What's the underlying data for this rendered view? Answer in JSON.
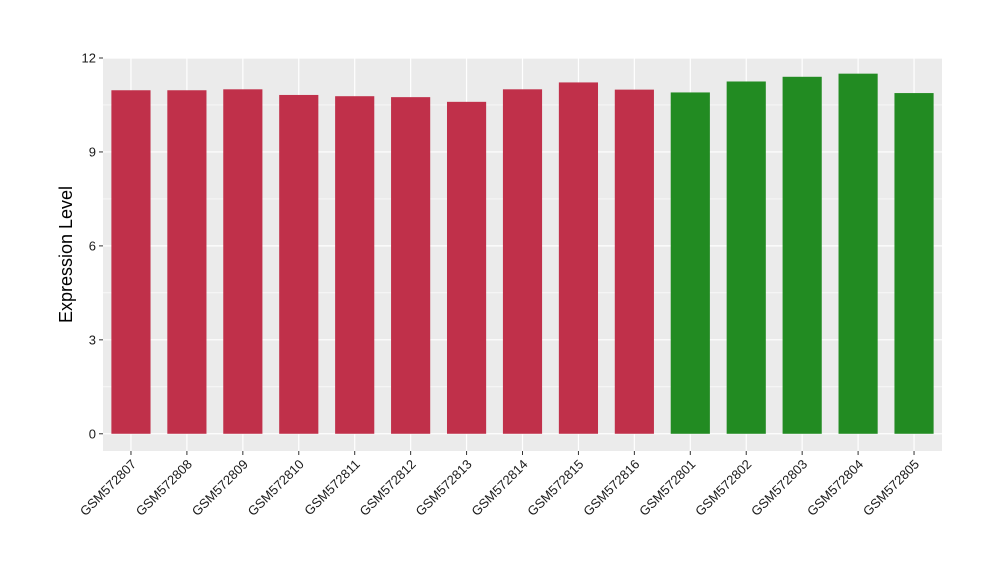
{
  "chart_data": {
    "type": "bar",
    "ylabel": "Expression Level",
    "xlabel": "",
    "title": "",
    "categories": [
      "GSM572807",
      "GSM572808",
      "GSM572809",
      "GSM572810",
      "GSM572811",
      "GSM572812",
      "GSM572813",
      "GSM572814",
      "GSM572815",
      "GSM572816",
      "GSM572801",
      "GSM572802",
      "GSM572803",
      "GSM572804",
      "GSM572805"
    ],
    "values": [
      10.97,
      10.97,
      11.0,
      10.82,
      10.78,
      10.75,
      10.6,
      11.0,
      11.22,
      10.99,
      10.9,
      11.25,
      11.4,
      11.5,
      10.88
    ],
    "bar_colors": [
      "#c0304a",
      "#c0304a",
      "#c0304a",
      "#c0304a",
      "#c0304a",
      "#c0304a",
      "#c0304a",
      "#c0304a",
      "#c0304a",
      "#c0304a",
      "#228b22",
      "#228b22",
      "#228b22",
      "#228b22",
      "#228b22"
    ],
    "ylim": [
      -0.55,
      12
    ],
    "yticks": [
      0,
      3,
      6,
      9,
      12
    ],
    "grid": true,
    "panel_background": "#ebebeb",
    "grid_color": "#ffffff",
    "legend": "none"
  }
}
